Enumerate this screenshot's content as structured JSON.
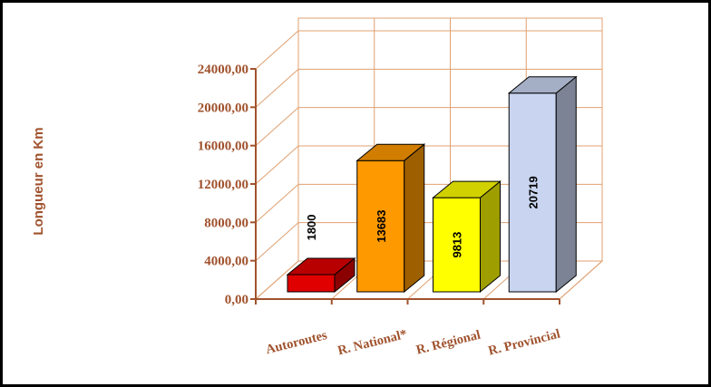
{
  "chart_data": {
    "type": "bar",
    "title": "",
    "xlabel": "",
    "ylabel": "Longueur en Km",
    "categories": [
      "Autoroutes",
      "R. National*",
      "R. Régional",
      "R. Provincial"
    ],
    "values": [
      1800,
      13683,
      9813,
      20719
    ],
    "data_labels": [
      "1800",
      "13683",
      "9813",
      "20719"
    ],
    "yticks": [
      "0,00",
      "4000,00",
      "8000,00",
      "12000,00",
      "16000,00",
      "20000,00",
      "24000,00"
    ],
    "ylim": [
      0,
      24000
    ],
    "grid": true,
    "legend": "none",
    "style": "3d",
    "colors": {
      "axis_text": "#a0522d",
      "grid": "#e0a070",
      "bars": [
        "#e00000",
        "#ff9900",
        "#ffff00",
        "#c8d4f0"
      ]
    }
  }
}
